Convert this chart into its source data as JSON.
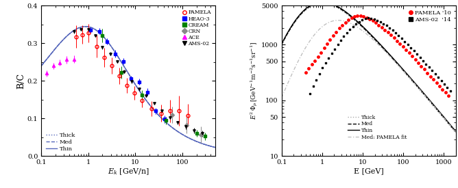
{
  "left": {
    "xlabel": "$E_k$ [GeV/n]",
    "ylabel": "B/C",
    "xlim": [
      0.1,
      500
    ],
    "ylim": [
      0.0,
      0.4
    ],
    "model_color": "#5555bb",
    "datasets": [
      {
        "name": "PAMELA",
        "color": "red",
        "marker": "o",
        "mfc": "none",
        "x": [
          0.55,
          0.75,
          1.0,
          1.5,
          2.2,
          3.2,
          4.5,
          6.5,
          9.5,
          14,
          22,
          35,
          55,
          85,
          130
        ],
        "y": [
          0.317,
          0.323,
          0.327,
          0.292,
          0.262,
          0.24,
          0.213,
          0.188,
          0.168,
          0.148,
          0.126,
          0.114,
          0.12,
          0.12,
          0.108
        ],
        "yerr": [
          0.03,
          0.025,
          0.025,
          0.03,
          0.025,
          0.022,
          0.022,
          0.02,
          0.018,
          0.018,
          0.02,
          0.022,
          0.03,
          0.04,
          0.03
        ]
      },
      {
        "name": "HEAO-3",
        "color": "blue",
        "marker": "s",
        "mfc": "blue",
        "x": [
          1.1,
          1.7,
          2.5,
          3.7,
          5.5,
          8.0,
          12,
          18,
          27,
          42
        ],
        "y": [
          0.335,
          0.332,
          0.305,
          0.272,
          0.252,
          0.206,
          0.197,
          0.17,
          0.12,
          0.098
        ],
        "yerr": [
          0.008,
          0.008,
          0.008,
          0.01,
          0.008,
          0.008,
          0.008,
          0.01,
          0.008,
          0.01
        ]
      },
      {
        "name": "CREAM",
        "color": "green",
        "marker": "s",
        "mfc": "green",
        "x": [
          2.0,
          5.0,
          14,
          45,
          200,
          300
        ],
        "y": [
          0.321,
          0.222,
          0.162,
          0.095,
          0.06,
          0.053
        ],
        "yerr": [
          0.018,
          0.016,
          0.013,
          0.01,
          0.009,
          0.01
        ]
      },
      {
        "name": "CRN",
        "color": "#888888",
        "marker": "D",
        "mfc": "#888888",
        "x": [
          60,
          120,
          250
        ],
        "y": [
          0.11,
          0.083,
          0.057
        ],
        "yerr": [
          0.022,
          0.022,
          0.022
        ]
      },
      {
        "name": "ACE",
        "color": "magenta",
        "marker": "^",
        "mfc": "magenta",
        "x": [
          0.13,
          0.18,
          0.25,
          0.35,
          0.5
        ],
        "y": [
          0.22,
          0.24,
          0.248,
          0.256,
          0.257
        ],
        "yerr": [
          0.008,
          0.008,
          0.008,
          0.01,
          0.01
        ]
      },
      {
        "name": "AMS-02",
        "color": "black",
        "marker": "v",
        "mfc": "black",
        "x": [
          0.5,
          0.7,
          1.0,
          1.4,
          2.0,
          2.9,
          4.1,
          5.8,
          8.3,
          12,
          17,
          25,
          37,
          54,
          80,
          118,
          175,
          259
        ],
        "y": [
          0.331,
          0.337,
          0.337,
          0.32,
          0.289,
          0.272,
          0.251,
          0.225,
          0.198,
          0.178,
          0.16,
          0.14,
          0.12,
          0.102,
          0.089,
          0.078,
          0.068,
          0.06
        ],
        "yerr": [
          0.005,
          0.004,
          0.004,
          0.004,
          0.004,
          0.004,
          0.004,
          0.004,
          0.004,
          0.004,
          0.004,
          0.004,
          0.004,
          0.004,
          0.005,
          0.006,
          0.007,
          0.008
        ]
      }
    ]
  },
  "right": {
    "xlabel": "E [GeV]",
    "ylabel": "$E^2\\,\\Phi_p\\,[\\mathrm{GeV}^{-1}\\mathrm{m}^{-2}\\mathrm{s}^{-1}\\mathrm{sr}^{-1}]$",
    "xlim": [
      0.1,
      2000
    ],
    "ylim": [
      10,
      5000
    ],
    "pamela_x": [
      0.4,
      0.47,
      0.56,
      0.66,
      0.79,
      0.94,
      1.12,
      1.33,
      1.58,
      1.88,
      2.24,
      2.66,
      3.16,
      3.76,
      4.47,
      5.31,
      6.31,
      7.5,
      8.91,
      10.6,
      12.6,
      15.0,
      17.8,
      21.1,
      25.1,
      29.9,
      35.5,
      42.2,
      50.1,
      59.6,
      70.8,
      84.1,
      100,
      119,
      141,
      168,
      200,
      237,
      282,
      335,
      398,
      473,
      562,
      668,
      794,
      944,
      1122,
      1334
    ],
    "pamela_y": [
      320,
      370,
      440,
      510,
      610,
      720,
      870,
      1040,
      1220,
      1440,
      1680,
      1960,
      2230,
      2520,
      2780,
      3020,
      3180,
      3280,
      3290,
      3200,
      3070,
      2880,
      2680,
      2460,
      2250,
      2040,
      1840,
      1650,
      1480,
      1320,
      1170,
      1040,
      920,
      810,
      710,
      620,
      540,
      470,
      410,
      360,
      310,
      270,
      237,
      207,
      181,
      158,
      138,
      120
    ],
    "ams_x": [
      0.5,
      0.6,
      0.72,
      0.86,
      1.02,
      1.22,
      1.45,
      1.72,
      2.05,
      2.44,
      2.9,
      3.45,
      4.1,
      4.88,
      5.8,
      6.9,
      8.2,
      9.7,
      11.6,
      13.8,
      16.4,
      19.5,
      23.2,
      27.6,
      32.8,
      39.0,
      46.4,
      55.2,
      65.6,
      78.0,
      92.8,
      110,
      131,
      156,
      185,
      220,
      262,
      311,
      370,
      440,
      523,
      622,
      739,
      879,
      1045,
      1243,
      1479
    ],
    "ams_y": [
      130,
      180,
      230,
      300,
      380,
      470,
      570,
      690,
      830,
      1010,
      1200,
      1410,
      1640,
      1880,
      2120,
      2360,
      2590,
      2780,
      2930,
      3000,
      2980,
      2880,
      2740,
      2570,
      2380,
      2190,
      1990,
      1800,
      1610,
      1440,
      1280,
      1130,
      998,
      878,
      770,
      673,
      588,
      513,
      448,
      391,
      341,
      297,
      259,
      225,
      196,
      170,
      148
    ]
  }
}
